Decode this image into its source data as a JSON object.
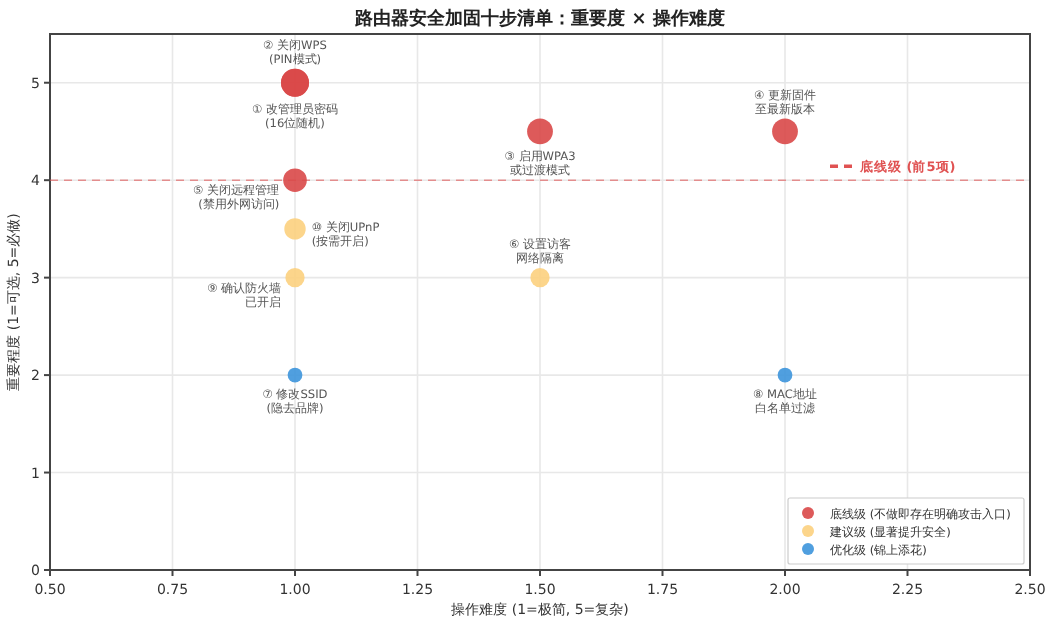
{
  "chart_data": {
    "type": "scatter",
    "title": "路由器安全加固十步清单：重要度 × 操作难度",
    "xlabel": "操作难度 (1=极简, 5=复杂)",
    "ylabel": "重要程度 (1=可选, 5=必做)",
    "series": [
      {
        "name": "底线级 (不做即存在明确攻击入口)",
        "color": "#d94848",
        "x": [
          1,
          1,
          1.5,
          2,
          1
        ],
        "values": [
          5,
          5,
          4.5,
          4.5,
          4
        ]
      },
      {
        "name": "建议级 (显著提升安全)",
        "color": "#fcd07e",
        "x": [
          1.5,
          1,
          1
        ],
        "values": [
          3,
          3,
          3.5
        ]
      },
      {
        "name": "优化级 (锦上添花)",
        "color": "#3d95dc",
        "x": [
          1,
          2
        ],
        "values": [
          2,
          2
        ]
      }
    ],
    "annotations": [
      {
        "text": "① 改管理员密码",
        "x": 1,
        "y": 5
      },
      "(16位随机)",
      {
        "text": "② 关闭WPS",
        "x": 1,
        "y": 5
      },
      "(PIN模式)",
      {
        "text": "③ 启用WPA3",
        "x": 1.5,
        "y": 4.5
      },
      "或过渡模式",
      {
        "text": "④ 更新固件",
        "x": 2,
        "y": 4.5
      },
      "至最新版本",
      {
        "text": "⑤ 关闭远程管理",
        "x": 1,
        "y": 4
      },
      "(禁用外网访问)",
      {
        "text": "⑥ 设置访客",
        "x": 1.5,
        "y": 3
      },
      "网络隔离",
      {
        "text": "⑨ 确认防火墙",
        "x": 1,
        "y": 3
      },
      "已开启",
      {
        "text": "⑩ 关闭UPnP",
        "x": 1,
        "y": 3.5
      },
      "(按需开启)",
      {
        "text": "⑦ 修改SSID",
        "x": 1,
        "y": 2
      },
      "(隐去品牌)",
      {
        "text": "⑧ MAC地址",
        "x": 2,
        "y": 2
      },
      "白名单过滤"
    ],
    "ref_lines": [
      {
        "axis": "y",
        "value": 4,
        "label": "底线级 (前5项)",
        "color": "#e05252",
        "line_style": "dashed"
      }
    ],
    "xlim": [
      0.5,
      2.5
    ],
    "xticks": [
      {
        "value": 0.5,
        "label": "0.50"
      },
      {
        "value": 0.75,
        "label": "0.75"
      },
      {
        "value": 1,
        "label": "1.00"
      },
      {
        "value": 1.25,
        "label": "1.25"
      },
      {
        "value": 1.5,
        "label": "1.50"
      },
      {
        "value": 1.75,
        "label": "1.75"
      },
      {
        "value": 2,
        "label": "2.00"
      },
      {
        "value": 2.25,
        "label": "2.25"
      },
      {
        "value": 2.5,
        "label": "2.50"
      }
    ],
    "ylim": [
      0,
      5.5
    ],
    "yticks": [
      0,
      1,
      2,
      3,
      4,
      5
    ],
    "grid": true,
    "legend": "bottom right",
    "marker": "circle"
  }
}
